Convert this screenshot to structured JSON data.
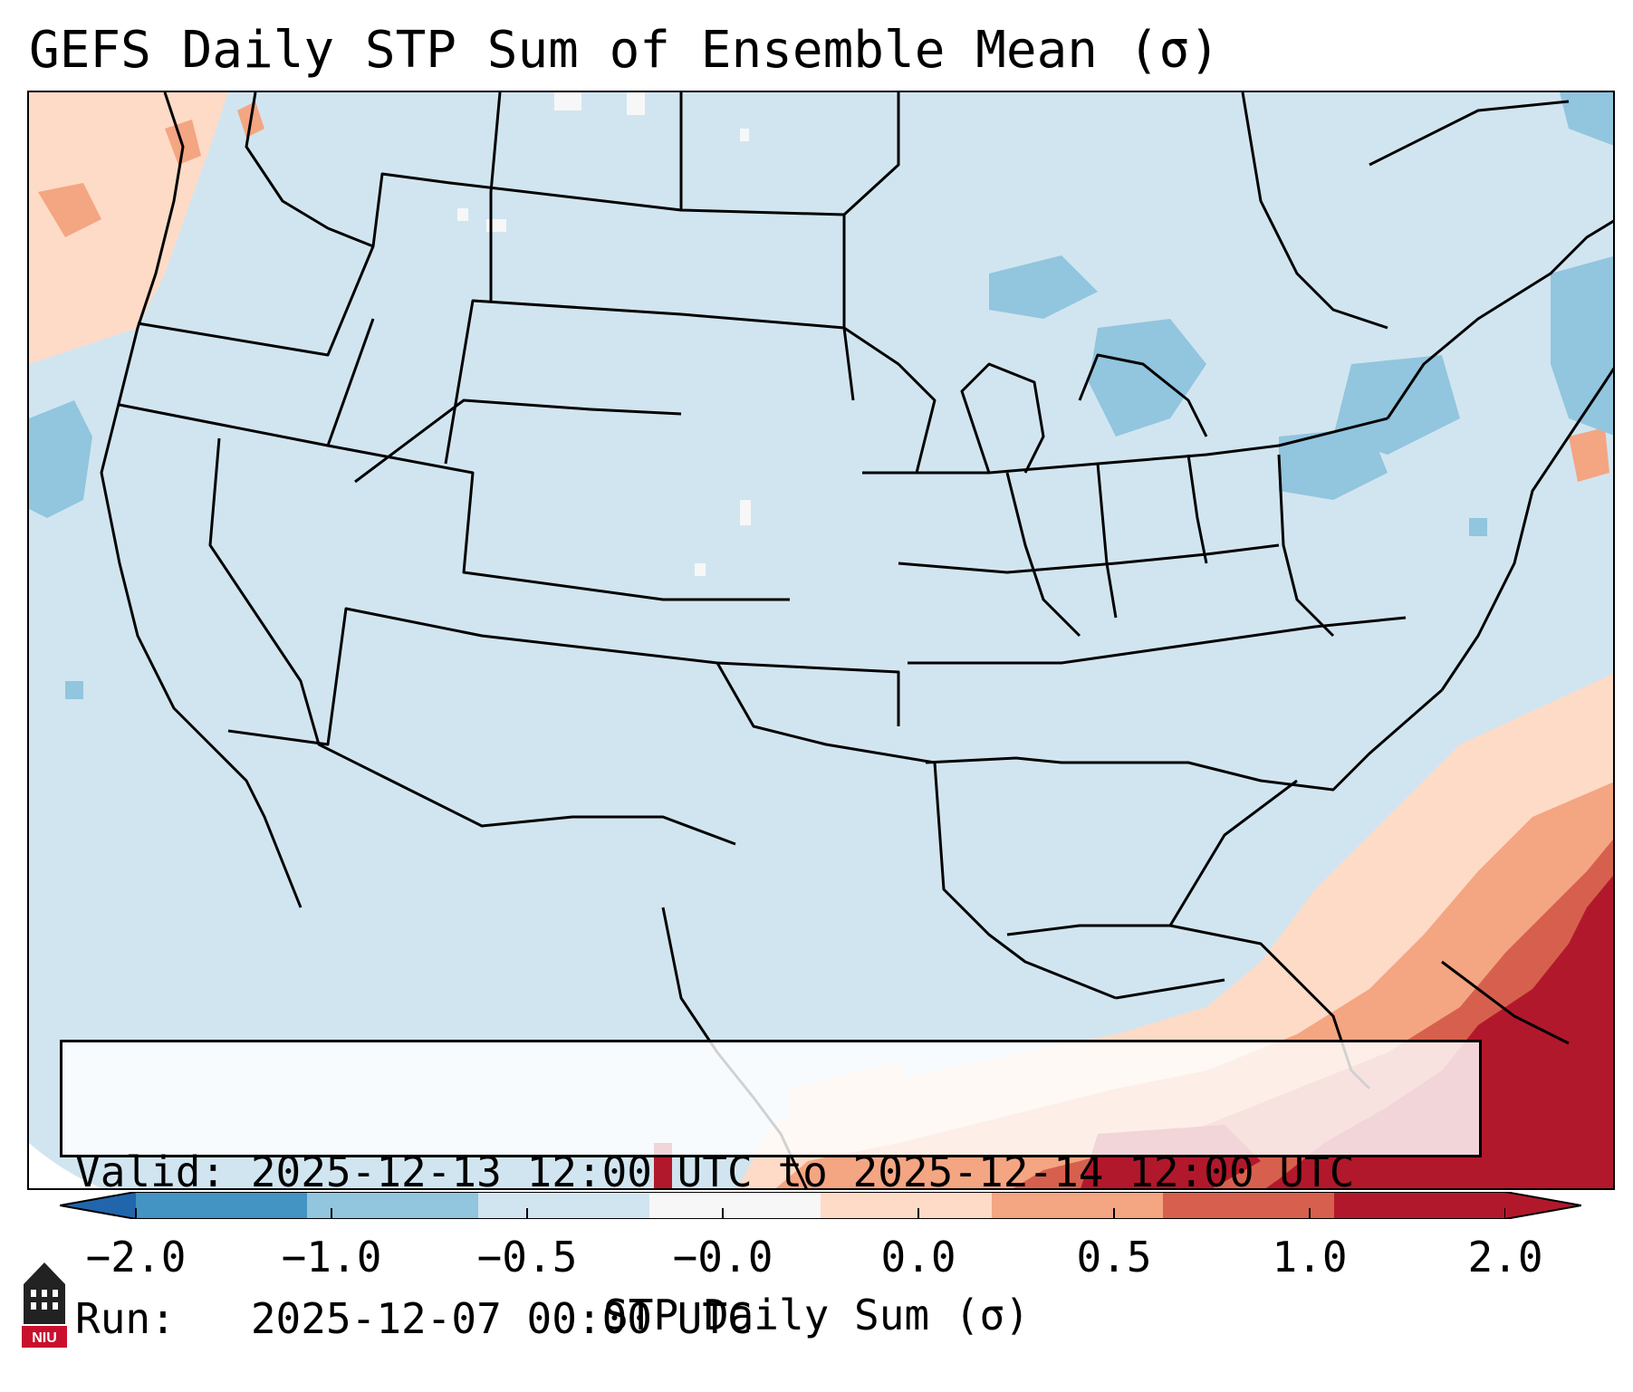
{
  "title": "GEFS Daily STP Sum of Ensemble Mean (σ)",
  "info": {
    "valid_line": "Valid: 2025-12-13 12:00 UTC to 2025-12-14 12:00 UTC",
    "run_line": "Run:   2025-12-07 00:00 UTC"
  },
  "colorbar": {
    "label": "STP Daily Sum (σ)",
    "ticks": [
      "−2.0",
      "−1.0",
      "−0.5",
      "−0.0",
      "0.0",
      "0.5",
      "1.0",
      "2.0"
    ],
    "colors": [
      "#4393c3",
      "#92c5de",
      "#d1e5f0",
      "#f7f7f7",
      "#fddbc7",
      "#f4a582",
      "#d6604d",
      "#b2182b"
    ],
    "extend_low_color": "#2166ac",
    "extend_high_color": "#b2182b"
  },
  "map": {
    "background_color": "#d1e5f0",
    "boundary_color": "#000000"
  },
  "logo": {
    "text": "NIU",
    "accent_color": "#c8102e"
  }
}
